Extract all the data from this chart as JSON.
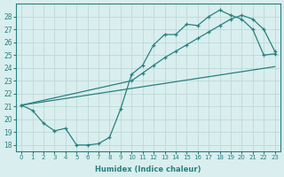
{
  "line1_x": [
    0,
    1,
    2,
    3,
    4,
    5,
    6,
    7,
    8,
    9,
    10,
    11,
    12,
    13,
    14,
    15,
    16,
    17,
    18,
    19,
    20,
    21,
    22,
    23
  ],
  "line1_y": [
    21.1,
    20.7,
    19.7,
    19.1,
    19.3,
    18.0,
    18.0,
    18.1,
    18.6,
    20.8,
    23.5,
    24.2,
    25.8,
    26.6,
    26.6,
    27.4,
    27.3,
    28.0,
    28.5,
    28.1,
    27.8,
    27.0,
    25.0,
    25.1
  ],
  "line2_x": [
    0,
    10,
    11,
    12,
    13,
    14,
    15,
    16,
    17,
    18,
    19,
    20,
    21,
    22,
    23
  ],
  "line2_y": [
    21.1,
    23.0,
    23.6,
    24.2,
    24.8,
    25.3,
    25.8,
    26.3,
    26.8,
    27.3,
    27.8,
    28.1,
    27.8,
    27.0,
    25.3
  ],
  "line3_x": [
    0,
    23
  ],
  "line3_y": [
    21.1,
    24.1
  ],
  "line_color": "#2a8080",
  "bg_color": "#d9eeee",
  "grid_color": "#b8d4d4",
  "xlabel": "Humidex (Indice chaleur)",
  "xlim": [
    -0.5,
    23.5
  ],
  "ylim": [
    17.5,
    29.0
  ],
  "yticks": [
    18,
    19,
    20,
    21,
    22,
    23,
    24,
    25,
    26,
    27,
    28
  ],
  "xticks": [
    0,
    1,
    2,
    3,
    4,
    5,
    6,
    7,
    8,
    9,
    10,
    11,
    12,
    13,
    14,
    15,
    16,
    17,
    18,
    19,
    20,
    21,
    22,
    23
  ]
}
